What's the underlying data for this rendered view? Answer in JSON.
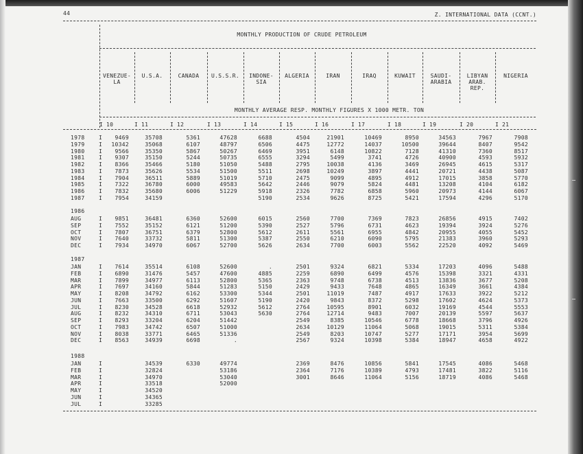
{
  "page": {
    "page_number": "44",
    "section_heading": "Z. INTERNATIONAL DATA (CCNT.)",
    "table_title": "MONTHLY PRODUCTION OF CRUDE PETROLEUM",
    "unit_note": "MONTHLY AVERAGE RESP. MONTHLY FIGURES X 1000 METR. TON"
  },
  "columns": [
    {
      "name": "VENEZUE-\nLA",
      "number": "10"
    },
    {
      "name": "U.S.A.",
      "number": "11"
    },
    {
      "name": "CANADA",
      "number": "12"
    },
    {
      "name": "U.S.S.R.",
      "number": "13"
    },
    {
      "name": "INDONE-\nSIA",
      "number": "14"
    },
    {
      "name": "ALGERIA",
      "number": "15"
    },
    {
      "name": "IRAN",
      "number": "16"
    },
    {
      "name": "IRAQ",
      "number": "17"
    },
    {
      "name": "KUWAIT",
      "number": "18"
    },
    {
      "name": "SAUDI-\nARABIA",
      "number": "19"
    },
    {
      "name": "LIBYAN\nARAB.\nREP.",
      "number": "20"
    },
    {
      "name": "NIGERIA",
      "number": "21"
    }
  ],
  "sections": [
    {
      "label": "",
      "rows": [
        {
          "label": "1978",
          "values": [
            "9469",
            "35708",
            "5361",
            "47628",
            "6688",
            "4504",
            "21901",
            "10469",
            "8950",
            "34563",
            "7967",
            "7908"
          ]
        },
        {
          "label": "1979",
          "values": [
            "10342",
            "35068",
            "6107",
            "48797",
            "6506",
            "4475",
            "12772",
            "14037",
            "10500",
            "39644",
            "8407",
            "9542"
          ]
        },
        {
          "label": "1980",
          "values": [
            "9566",
            "35350",
            "5867",
            "50267",
            "6469",
            "3951",
            "6148",
            "10822",
            "7128",
            "41310",
            "7360",
            "8517"
          ]
        },
        {
          "label": "1981",
          "values": [
            "9307",
            "35150",
            "5244",
            "50735",
            "6555",
            "3294",
            "5499",
            "3741",
            "4726",
            "40900",
            "4593",
            "5932"
          ]
        },
        {
          "label": "1982",
          "values": [
            "8366",
            "35466",
            "5180",
            "51050",
            "5488",
            "2795",
            "10038",
            "4136",
            "3469",
            "26945",
            "4615",
            "5317"
          ]
        },
        {
          "label": "1983",
          "values": [
            "7873",
            "35626",
            "5534",
            "51500",
            "5511",
            "2698",
            "10249",
            "3897",
            "4441",
            "20721",
            "4438",
            "5087"
          ]
        },
        {
          "label": "1984",
          "values": [
            "7904",
            "36511",
            "5889",
            "51019",
            "5710",
            "2475",
            "9099",
            "4895",
            "4912",
            "17015",
            "3858",
            "5770"
          ]
        },
        {
          "label": "1985",
          "values": [
            "7322",
            "36780",
            "6000",
            "49583",
            "5642",
            "2446",
            "9079",
            "5824",
            "4481",
            "13208",
            "4104",
            "6182"
          ]
        },
        {
          "label": "1986",
          "values": [
            "7832",
            "35680",
            "6006",
            "51229",
            "5918",
            "2326",
            "7782",
            "6858",
            "5960",
            "20973",
            "4144",
            "6067"
          ]
        },
        {
          "label": "1987",
          "values": [
            "7954",
            "34159",
            "",
            "",
            "5190",
            "2534",
            "9626",
            "8725",
            "5421",
            "17594",
            "4296",
            "5170"
          ]
        }
      ]
    },
    {
      "label": "1986",
      "rows": [
        {
          "label": "AUG",
          "values": [
            "9851",
            "36481",
            "6360",
            "52600",
            "6015",
            "2560",
            "7700",
            "7369",
            "7823",
            "26856",
            "4915",
            "7402"
          ]
        },
        {
          "label": "SEP",
          "values": [
            "7552",
            "35152",
            "6121",
            "51200",
            "5390",
            "2527",
            "5796",
            "6731",
            "4623",
            "19394",
            "3924",
            "5276"
          ]
        },
        {
          "label": "OCT",
          "values": [
            "7807",
            "36751",
            "6379",
            "52800",
            "5612",
            "2611",
            "5561",
            "6955",
            "4842",
            "20955",
            "4055",
            "5452"
          ]
        },
        {
          "label": "NOV",
          "values": [
            "7640",
            "33732",
            "5811",
            "51300",
            "5387",
            "2550",
            "6210",
            "6090",
            "5795",
            "21383",
            "3960",
            "5293"
          ]
        },
        {
          "label": "DEC",
          "values": [
            "7934",
            "34970",
            "6067",
            "52700",
            "5626",
            "2634",
            "7700",
            "6003",
            "5562",
            "22520",
            "4092",
            "5469"
          ]
        }
      ]
    },
    {
      "label": "1987",
      "rows": [
        {
          "label": "JAN",
          "values": [
            "7614",
            "35514",
            "6108",
            "52600",
            ".",
            "2501",
            "9324",
            "6821",
            "5334",
            "17203",
            "4096",
            "5488"
          ]
        },
        {
          "label": "FEB",
          "values": [
            "6890",
            "31476",
            "5457",
            "47600",
            "4885",
            "2259",
            "6890",
            "6499",
            "4576",
            "15398",
            "3321",
            "4331"
          ]
        },
        {
          "label": "MAR",
          "values": [
            "7899",
            "34977",
            "6113",
            "52800",
            "5365",
            "2363",
            "9748",
            "6738",
            "4513",
            "13836",
            "3677",
            "5208"
          ]
        },
        {
          "label": "APR",
          "values": [
            "7697",
            "34160",
            "5844",
            "51283",
            "5150",
            "2429",
            "9433",
            "7648",
            "4865",
            "16349",
            "3661",
            "4384"
          ]
        },
        {
          "label": "MAY",
          "values": [
            "8208",
            "34792",
            "6162",
            "53300",
            "5344",
            "2501",
            "11019",
            "7487",
            "4917",
            "17633",
            "3922",
            "5212"
          ]
        },
        {
          "label": "JUN",
          "values": [
            "7663",
            "33500",
            "6292",
            "51607",
            "5190",
            "2420",
            "9843",
            "8372",
            "5298",
            "17602",
            "4624",
            "5373"
          ]
        },
        {
          "label": "JUL",
          "values": [
            "8230",
            "34528",
            "6618",
            "52932",
            "5612",
            "2764",
            "10595",
            "8901",
            "6032",
            "19169",
            "4544",
            "5553"
          ]
        },
        {
          "label": "AUG",
          "values": [
            "8232",
            "34310",
            "6711",
            "53043",
            "5630",
            "2764",
            "12714",
            "9483",
            "7007",
            "20139",
            "5597",
            "5637"
          ]
        },
        {
          "label": "SEP",
          "values": [
            "8293",
            "33204",
            "6204",
            "51442",
            "",
            "2549",
            "8385",
            "10546",
            "6778",
            "18668",
            "3796",
            "4926"
          ]
        },
        {
          "label": "OCT",
          "values": [
            "7983",
            "34742",
            "6507",
            "51000",
            "",
            "2634",
            "10129",
            "11064",
            "5068",
            "19015",
            "5311",
            "5384"
          ]
        },
        {
          "label": "NOV",
          "values": [
            "8038",
            "33771",
            "6465",
            "51336",
            "",
            "2549",
            "8203",
            "10747",
            "5277",
            "17171",
            "3954",
            "5699"
          ]
        },
        {
          "label": "DEC",
          "values": [
            "8563",
            "34939",
            "6698",
            ".",
            "",
            "2567",
            "9324",
            "10398",
            "5384",
            "18947",
            "4658",
            "4922"
          ]
        }
      ]
    },
    {
      "label": "1988",
      "rows": [
        {
          "label": "JAN",
          "values": [
            "",
            "34539",
            "6330",
            "49774",
            "",
            "2369",
            "8476",
            "10856",
            "5841",
            "17545",
            "4086",
            "5468"
          ]
        },
        {
          "label": "FEB",
          "values": [
            "",
            "32824",
            "",
            "53186",
            "",
            "2364",
            "7176",
            "10389",
            "4793",
            "17481",
            "3822",
            "5116"
          ]
        },
        {
          "label": "MAR",
          "values": [
            "",
            "34970",
            "",
            "53040",
            "",
            "3001",
            "8646",
            "11064",
            "5156",
            "18719",
            "4086",
            "5468"
          ]
        },
        {
          "label": "APR",
          "values": [
            "",
            "33518",
            "",
            "52000",
            "",
            "",
            "",
            "",
            "",
            "",
            "",
            ""
          ]
        },
        {
          "label": "MAY",
          "values": [
            "",
            "34520",
            "",
            "",
            "",
            "",
            "",
            "",
            "",
            "",
            "",
            ""
          ]
        },
        {
          "label": "JUN",
          "values": [
            "",
            "34365",
            "",
            "",
            "",
            "",
            "",
            "",
            "",
            "",
            "",
            ""
          ]
        },
        {
          "label": "JUL",
          "values": [
            "",
            "33285",
            "",
            "",
            "",
            "",
            "",
            "",
            "",
            "",
            "",
            ""
          ]
        }
      ]
    }
  ]
}
